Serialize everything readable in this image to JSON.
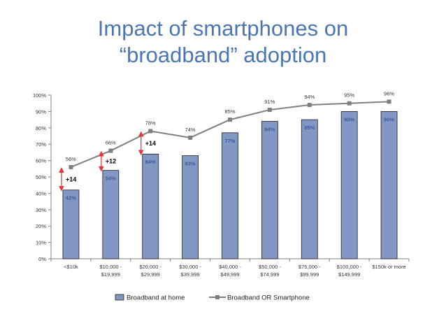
{
  "title": {
    "line1": "Impact of smartphones on",
    "line2": "“broadband” adoption"
  },
  "chart_data": {
    "type": "bar",
    "title": "Impact of smartphones on “broadband” adoption",
    "xlabel": "",
    "ylabel": "",
    "ylim": [
      0,
      100
    ],
    "yticks": [
      "0%",
      "10%",
      "20%",
      "30%",
      "40%",
      "50%",
      "60%",
      "70%",
      "80%",
      "90%",
      "100%"
    ],
    "categories": [
      [
        "<$10k"
      ],
      [
        "$10,000 -",
        "$19,999"
      ],
      [
        "$20,000 -",
        "$29,999"
      ],
      [
        "$30,000 -",
        "$39,999"
      ],
      [
        "$40,000 -",
        "$49,999"
      ],
      [
        "$50,000 -",
        "$74,999"
      ],
      [
        "$75,000 -",
        "$99,999"
      ],
      [
        "$100,000 -",
        "$149,999"
      ],
      [
        "$150k or more"
      ]
    ],
    "series": [
      {
        "name": "Broadband at home",
        "kind": "bar",
        "values": [
          42,
          54,
          64,
          63,
          77,
          84,
          85,
          90,
          90
        ],
        "labels": [
          "42%",
          "54%",
          "64%",
          "63%",
          "77%",
          "84%",
          "85%",
          "90%",
          "90%"
        ],
        "color": "#8297c4"
      },
      {
        "name": "Broadband OR Smartphone",
        "kind": "line",
        "values": [
          56,
          66,
          78,
          74,
          85,
          91,
          94,
          95,
          96
        ],
        "labels": [
          "56%",
          "66%",
          "78%",
          "74%",
          "85%",
          "91%",
          "94%",
          "95%",
          "96%"
        ],
        "color": "#7f7f7f"
      }
    ],
    "annotations": [
      {
        "index": 0,
        "from": 42,
        "to": 56,
        "text": "+14"
      },
      {
        "index": 1,
        "from": 54,
        "to": 66,
        "text": "+12"
      },
      {
        "index": 2,
        "from": 64,
        "to": 78,
        "text": "+14"
      }
    ],
    "legend": {
      "position": "bottom",
      "bar_label": "Broadband at home",
      "line_label": "Broadband OR Smartphone"
    },
    "colors": {
      "title": "#4a76b6",
      "bar_fill": "#8297c4",
      "bar_stroke": "#1f1f1f",
      "bar_label": "#3c5a99",
      "line": "#7f7f7f",
      "arrow": "#e0393b",
      "axis": "#808080"
    }
  }
}
